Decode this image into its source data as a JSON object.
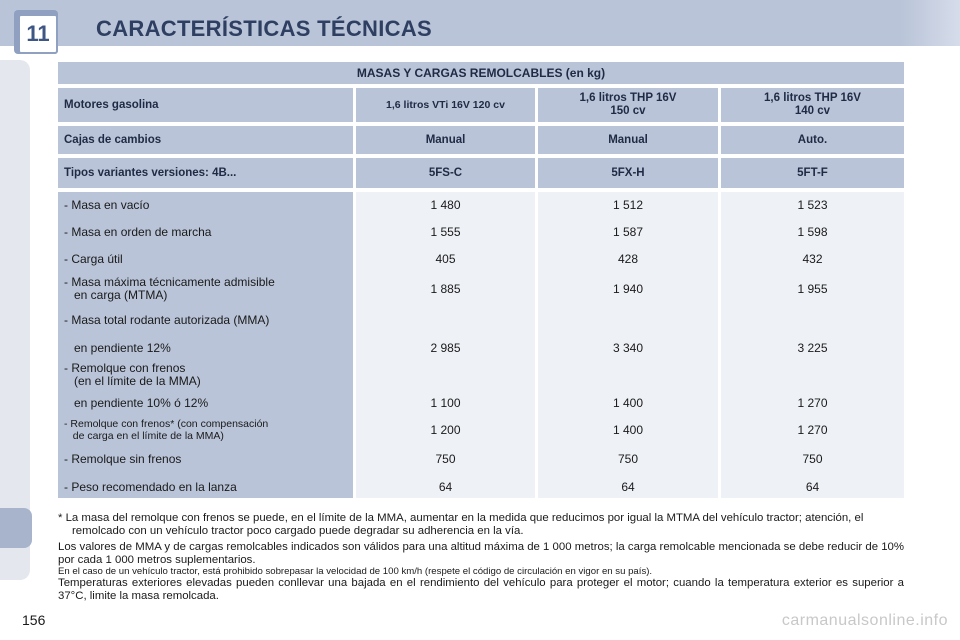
{
  "header": {
    "chapter": "11",
    "title": "CARACTERÍSTICAS TÉCNICAS"
  },
  "table": {
    "title": "MASAS Y CARGAS REMOLCABLES (en kg)",
    "engines_label": "Motores gasolina",
    "engines": [
      "1,6 litros VTi 16V 120 cv",
      "1,6 litros THP 16V\n150 cv",
      "1,6 litros THP 16V\n140 cv"
    ],
    "gearbox_label": "Cajas de cambios",
    "gearboxes": [
      "Manual",
      "Manual",
      "Auto."
    ],
    "variants_label": "Tipos variantes versiones: 4B...",
    "variants": [
      "5FS-C",
      "5FX-H",
      "5FT-F"
    ],
    "rows": [
      {
        "label": "- Masa en vacío",
        "values": [
          "1 480",
          "1 512",
          "1 523"
        ]
      },
      {
        "label": "- Masa en orden de marcha",
        "values": [
          "1 555",
          "1 587",
          "1 598"
        ]
      },
      {
        "label": "- Carga útil",
        "values": [
          "405",
          "428",
          "432"
        ]
      },
      {
        "label": "- Masa máxima técnicamente admisible\n   en carga (MTMA)",
        "values": [
          "1 885",
          "1 940",
          "1 955"
        ]
      },
      {
        "label": "- Masa total rodante autorizada (MMA)",
        "values": [
          "",
          "",
          ""
        ]
      },
      {
        "label": "   en pendiente 12%",
        "values": [
          "2 985",
          "3 340",
          "3 225"
        ]
      },
      {
        "label": "- Remolque con frenos\n   (en el límite de la MMA)",
        "values": [
          "",
          "",
          ""
        ]
      },
      {
        "label": "   en pendiente 10% ó 12%",
        "values": [
          "1 100",
          "1 400",
          "1 270"
        ]
      },
      {
        "label": "- Remolque con frenos* (con compensación\n   de carga en el límite de la MMA)",
        "values": [
          "1 200",
          "1 400",
          "1 270"
        ]
      },
      {
        "label": "- Remolque sin frenos",
        "values": [
          "750",
          "750",
          "750"
        ]
      },
      {
        "label": "- Peso recomendado en la lanza",
        "values": [
          "64",
          "64",
          "64"
        ]
      }
    ]
  },
  "notes": {
    "footnote": "* La masa del remolque con frenos se puede, en el límite de la MMA, aumentar en la medida que reducimos por igual la MTMA del vehículo tractor; atención, el remolcado con un vehículo tractor poco cargado puede degradar su adherencia en la vía.",
    "p1": "Los valores de MMA y de cargas remolcables indicados son válidos para una altitud máxima de 1 000 metros; la carga remolcable mencionada se debe reducir de 10% por cada 1 000 metros suplementarios.",
    "p2": "En el caso de un vehículo tractor, está prohibido sobrepasar la velocidad de 100 km/h (respete el código de circulación en vigor en su país).",
    "p3": "Temperaturas exteriores elevadas pueden conllevar una bajada en el rendimiento del vehículo para proteger el motor; cuando la temperatura exterior es superior a 37°C, limite la masa remolcada."
  },
  "page_number": "156",
  "watermark": "carmanualsonline.info"
}
